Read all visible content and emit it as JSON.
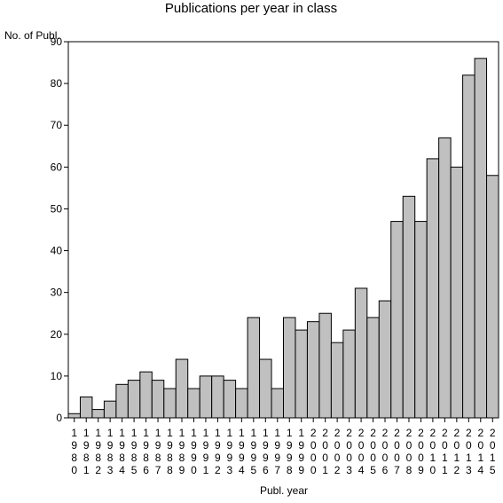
{
  "chart_data": {
    "type": "bar",
    "title": "Publications per year in class",
    "xlabel": "Publ. year",
    "ylabel": "No. of Publ.",
    "ylim": [
      0,
      90
    ],
    "yticks": [
      0,
      10,
      20,
      30,
      40,
      50,
      60,
      70,
      80,
      90
    ],
    "grid": false,
    "legend": "none",
    "categories": [
      "1980",
      "1981",
      "1982",
      "1983",
      "1984",
      "1985",
      "1986",
      "1987",
      "1988",
      "1989",
      "1990",
      "1991",
      "1992",
      "1993",
      "1994",
      "1995",
      "1996",
      "1997",
      "1998",
      "1999",
      "2000",
      "2001",
      "2002",
      "2003",
      "2004",
      "2005",
      "2006",
      "2007",
      "2008",
      "2009",
      "2010",
      "2011",
      "2012",
      "2013",
      "2014",
      "2015"
    ],
    "values": [
      1,
      5,
      2,
      4,
      8,
      9,
      11,
      9,
      7,
      14,
      7,
      10,
      10,
      9,
      7,
      24,
      14,
      7,
      24,
      21,
      23,
      25,
      18,
      21,
      31,
      24,
      28,
      47,
      53,
      47,
      62,
      67,
      60,
      82,
      86,
      58
    ],
    "bar_color": "#c0c0c0",
    "bar_edge_color": "#000000"
  }
}
